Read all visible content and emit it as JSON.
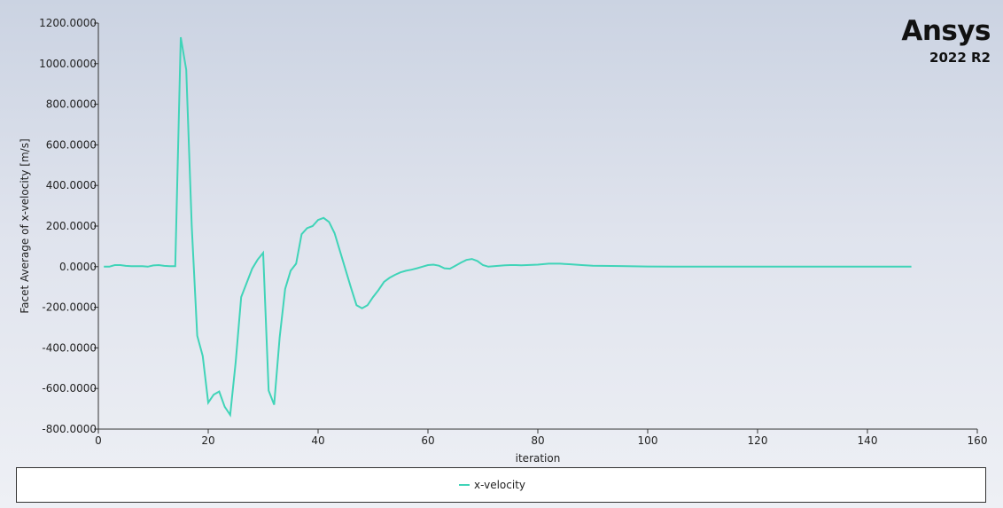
{
  "branding": {
    "name": "Ansys",
    "version": "2022 R2"
  },
  "colors": {
    "series": "#40d4b8",
    "axis": "#333333"
  },
  "chart_data": {
    "type": "line",
    "title": "",
    "xlabel": "iteration",
    "ylabel": "Facet Average of x-velocity [m/s]",
    "xlim": [
      0,
      160
    ],
    "ylim": [
      -800,
      1200
    ],
    "grid": false,
    "legend_placement": "bottom",
    "x_ticks": [
      0,
      20,
      40,
      60,
      80,
      100,
      120,
      140,
      160
    ],
    "x_tick_labels": [
      "0",
      "20",
      "40",
      "60",
      "80",
      "100",
      "120",
      "140",
      "160"
    ],
    "y_ticks": [
      -800,
      -600,
      -400,
      -200,
      0,
      200,
      400,
      600,
      800,
      1000,
      1200
    ],
    "y_tick_labels": [
      "-800.0000",
      "-600.0000",
      "-400.0000",
      "-200.0000",
      "0.0000",
      "200.0000",
      "400.0000",
      "600.0000",
      "800.0000",
      "1000.0000",
      "1200.0000"
    ],
    "series": [
      {
        "name": "x-velocity",
        "x": [
          1,
          2,
          3,
          4,
          5,
          6,
          7,
          8,
          9,
          10,
          11,
          12,
          13,
          14,
          15,
          16,
          17,
          18,
          19,
          20,
          21,
          22,
          23,
          24,
          25,
          26,
          27,
          28,
          29,
          30,
          31,
          32,
          33,
          34,
          35,
          36,
          37,
          38,
          39,
          40,
          41,
          42,
          43,
          44,
          45,
          46,
          47,
          48,
          49,
          50,
          51,
          52,
          53,
          54,
          55,
          56,
          57,
          58,
          59,
          60,
          61,
          62,
          63,
          64,
          65,
          66,
          67,
          68,
          69,
          70,
          71,
          72,
          73,
          74,
          75,
          76,
          77,
          78,
          79,
          80,
          82,
          84,
          86,
          88,
          90,
          95,
          100,
          105,
          110,
          115,
          120,
          125,
          130,
          135,
          140,
          145,
          148
        ],
        "values": [
          0,
          0,
          8,
          8,
          4,
          2,
          2,
          2,
          0,
          6,
          8,
          4,
          2,
          2,
          1130,
          970,
          200,
          -340,
          -440,
          -670,
          -630,
          -615,
          -690,
          -730,
          -470,
          -150,
          -80,
          -10,
          35,
          68,
          -610,
          -680,
          -350,
          -110,
          -20,
          15,
          160,
          190,
          200,
          230,
          240,
          220,
          165,
          75,
          -15,
          -105,
          -190,
          -205,
          -190,
          -150,
          -115,
          -75,
          -55,
          -40,
          -28,
          -20,
          -15,
          -8,
          0,
          8,
          10,
          5,
          -8,
          -10,
          5,
          20,
          33,
          38,
          28,
          8,
          0,
          2,
          5,
          7,
          8,
          8,
          7,
          8,
          9,
          10,
          15,
          15,
          12,
          8,
          5,
          3,
          1,
          0,
          0,
          0,
          0,
          0,
          0,
          0,
          0,
          0,
          0
        ]
      }
    ]
  }
}
